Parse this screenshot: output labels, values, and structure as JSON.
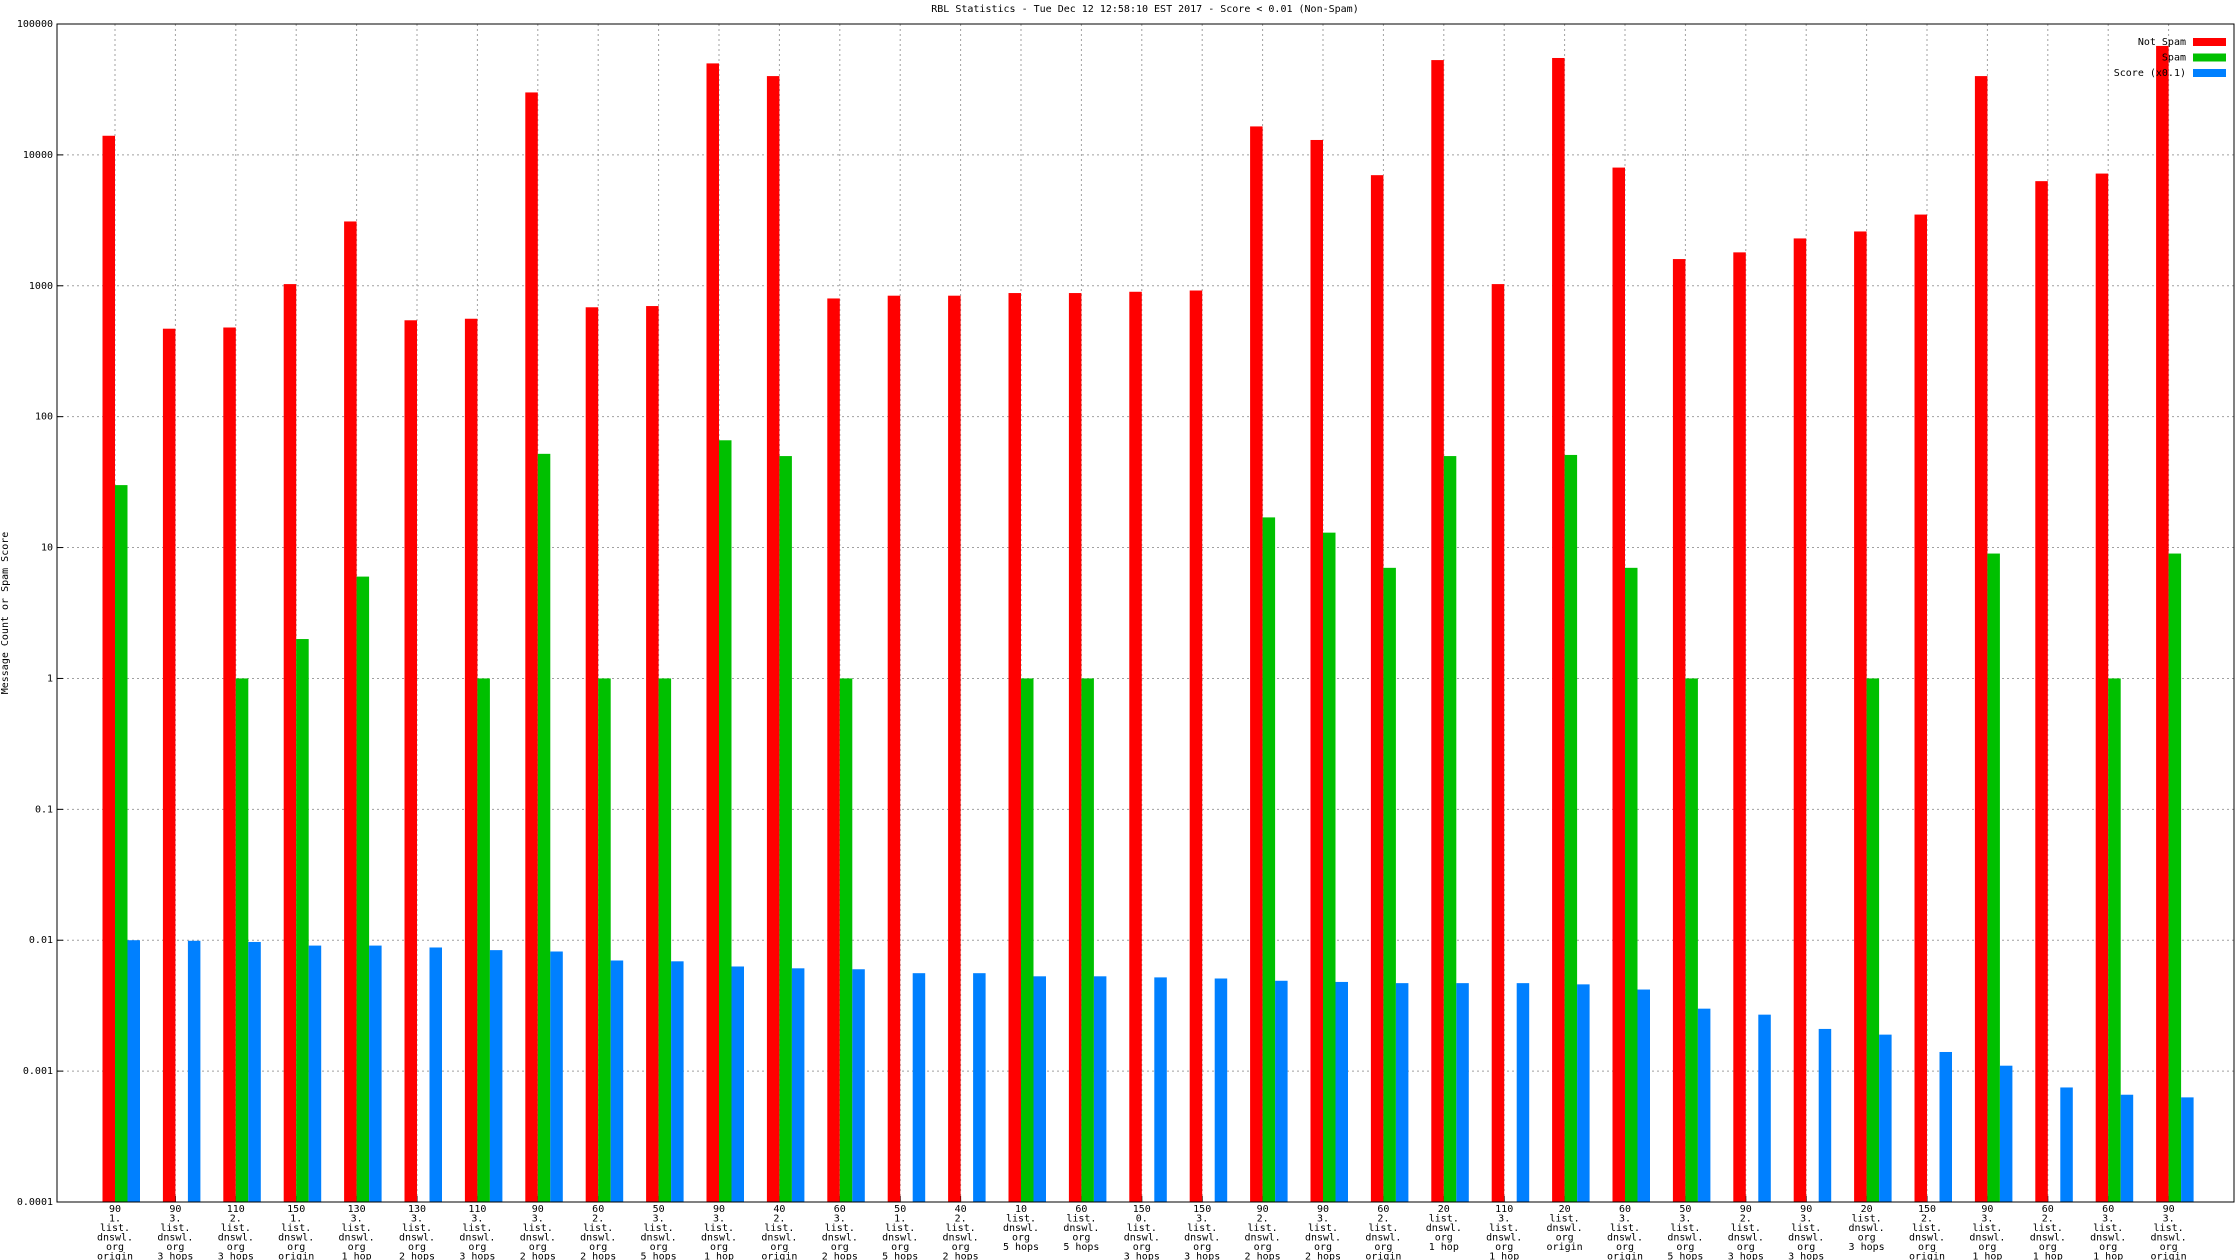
{
  "chart_data": {
    "type": "bar",
    "title": "RBL Statistics - Tue Dec 12 12:58:10 EST 2017 - Score < 0.01 (Non-Spam)",
    "y_label": "Message Count or Spam Score",
    "log_y": true,
    "grid": true,
    "legend": "top-right",
    "categories": [
      [
        "90",
        "1.",
        "list.",
        "dnswl.",
        "org",
        "origin"
      ],
      [
        "90",
        "3.",
        "list.",
        "dnswl.",
        "org",
        "3 hops"
      ],
      [
        "110",
        "2.",
        "list.",
        "dnswl.",
        "org",
        "3 hops"
      ],
      [
        "150",
        "1.",
        "list.",
        "dnswl.",
        "org",
        "origin"
      ],
      [
        "130",
        "3.",
        "list.",
        "dnswl.",
        "org",
        "1 hop"
      ],
      [
        "130",
        "3.",
        "list.",
        "dnswl.",
        "org",
        "2 hops"
      ],
      [
        "110",
        "3.",
        "list.",
        "dnswl.",
        "org",
        "3 hops"
      ],
      [
        "90",
        "3.",
        "list.",
        "dnswl.",
        "org",
        "2 hops"
      ],
      [
        "60",
        "2.",
        "list.",
        "dnswl.",
        "org",
        "2 hops"
      ],
      [
        "50",
        "3.",
        "list.",
        "dnswl.",
        "org",
        "5 hops"
      ],
      [
        "90",
        "3.",
        "list.",
        "dnswl.",
        "org",
        "1 hop"
      ],
      [
        "40",
        "2.",
        "list.",
        "dnswl.",
        "org",
        "origin"
      ],
      [
        "60",
        "3.",
        "list.",
        "dnswl.",
        "org",
        "2 hops"
      ],
      [
        "50",
        "1.",
        "list.",
        "dnswl.",
        "org",
        "5 hops"
      ],
      [
        "40",
        "2.",
        "list.",
        "dnswl.",
        "org",
        "2 hops"
      ],
      [
        "10",
        "list.",
        "dnswl.",
        "org",
        "5 hops"
      ],
      [
        "60",
        "list.",
        "dnswl.",
        "org",
        "5 hops"
      ],
      [
        "150",
        "0.",
        "list.",
        "dnswl.",
        "org",
        "3 hops"
      ],
      [
        "150",
        "3.",
        "list.",
        "dnswl.",
        "org",
        "3 hops"
      ],
      [
        "90",
        "2.",
        "list.",
        "dnswl.",
        "org",
        "2 hops"
      ],
      [
        "90",
        "3.",
        "list.",
        "dnswl.",
        "org",
        "2 hops"
      ],
      [
        "60",
        "2.",
        "list.",
        "dnswl.",
        "org",
        "origin"
      ],
      [
        "20",
        "list.",
        "dnswl.",
        "org",
        "1 hop"
      ],
      [
        "110",
        "3.",
        "list.",
        "dnswl.",
        "org",
        "1 hop"
      ],
      [
        "20",
        "list.",
        "dnswl.",
        "org",
        "origin"
      ],
      [
        "60",
        "3.",
        "list.",
        "dnswl.",
        "org",
        "origin"
      ],
      [
        "50",
        "3.",
        "list.",
        "dnswl.",
        "org",
        "5 hops"
      ],
      [
        "90",
        "2.",
        "list.",
        "dnswl.",
        "org",
        "3 hops"
      ],
      [
        "90",
        "3.",
        "list.",
        "dnswl.",
        "org",
        "3 hops"
      ],
      [
        "20",
        "list.",
        "dnswl.",
        "org",
        "3 hops"
      ],
      [
        "150",
        "2.",
        "list.",
        "dnswl.",
        "org",
        "origin"
      ],
      [
        "90",
        "3.",
        "list.",
        "dnswl.",
        "org",
        "1 hop"
      ],
      [
        "60",
        "2.",
        "list.",
        "dnswl.",
        "org",
        "1 hop"
      ],
      [
        "60",
        "3.",
        "list.",
        "dnswl.",
        "org",
        "1 hop"
      ],
      [
        "90",
        "3.",
        "list.",
        "dnswl.",
        "org",
        "origin"
      ]
    ],
    "series": [
      {
        "name": "Not Spam",
        "color": "#ff0000",
        "values": [
          14000,
          470,
          480,
          1030,
          3100,
          545,
          560,
          30000,
          685,
          700,
          50000,
          40000,
          800,
          840,
          840,
          880,
          880,
          900,
          920,
          16500,
          13000,
          7000,
          53000,
          1030,
          55000,
          8000,
          1600,
          1800,
          2300,
          2600,
          3500,
          40000,
          6300,
          7200,
          68000
        ]
      },
      {
        "name": "Spam",
        "color": "#00c000",
        "values": [
          30,
          null,
          1,
          2,
          6,
          null,
          1,
          52,
          1,
          1,
          66,
          50,
          1,
          null,
          null,
          1,
          1,
          null,
          null,
          17,
          13,
          7,
          50,
          null,
          51,
          7,
          1,
          null,
          null,
          1,
          null,
          9,
          null,
          1,
          9
        ]
      },
      {
        "name": "Score (x0.1)",
        "color": "#0080ff",
        "values": [
          0.01,
          0.0099,
          0.0097,
          0.0091,
          0.0091,
          0.0088,
          0.0084,
          0.0082,
          0.007,
          0.0069,
          0.0063,
          0.0061,
          0.006,
          0.0056,
          0.0056,
          0.0053,
          0.0053,
          0.0052,
          0.0051,
          0.0049,
          0.0048,
          0.0047,
          0.0047,
          0.0047,
          0.0046,
          0.0042,
          0.003,
          0.0027,
          0.0021,
          0.0019,
          0.0014,
          0.0011,
          0.00075,
          0.00066,
          0.00063
        ]
      }
    ],
    "ylim": [
      0.0001,
      100000
    ],
    "yticks": [
      100000,
      10000,
      1000,
      100,
      10,
      1,
      0.1,
      0.01,
      0.001,
      0.0001
    ]
  }
}
